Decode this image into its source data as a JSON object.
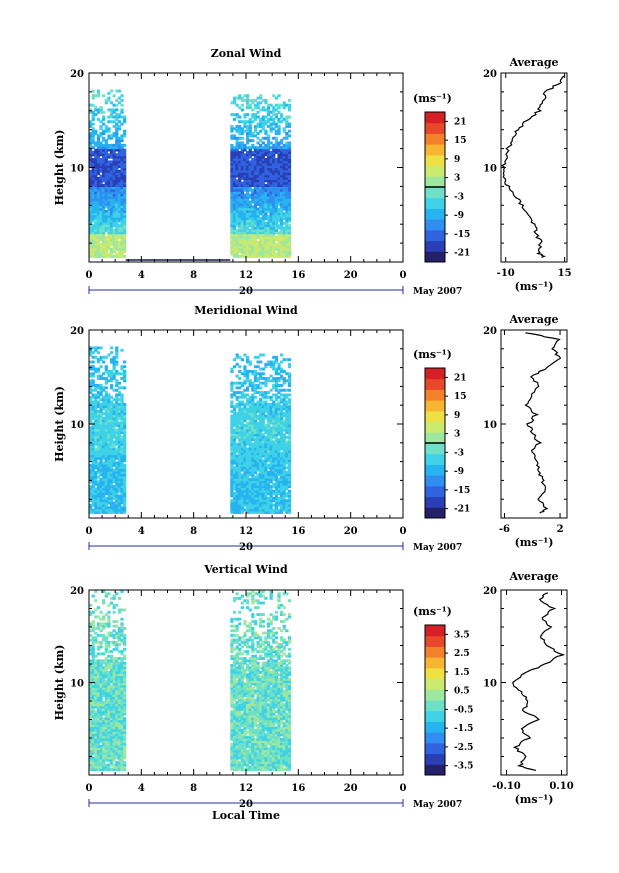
{
  "colors": {
    "colormap": [
      "#25206a",
      "#2a3fb5",
      "#2f63e0",
      "#2f8ef0",
      "#27b3f0",
      "#3fd2e6",
      "#6ee0c8",
      "#9de7a0",
      "#c9ea6e",
      "#efe043",
      "#f7b531",
      "#f3802a",
      "#e8482a",
      "#d42026"
    ],
    "line": "#000000"
  },
  "chart_data": [
    {
      "type": "heatmap",
      "title": "Zonal Wind",
      "ylabel": "Height (km)",
      "xlabel": "",
      "xlim": [
        0,
        24
      ],
      "ylim": [
        0,
        20
      ],
      "x_ticks": [
        "0",
        "4",
        "8",
        "12",
        "16",
        "20",
        "0"
      ],
      "y_ticks": [
        "20",
        "10"
      ],
      "date_axis": {
        "day_label": "20",
        "month_label": "May 2007"
      },
      "colorbar": {
        "unit": "(ms⁻¹)",
        "range": [
          -24,
          24
        ],
        "ticks": [
          "21",
          "15",
          "9",
          "3",
          "-3",
          "-9",
          "-15",
          "-21"
        ],
        "zero_line": true
      },
      "observed_x_ranges": [
        [
          0,
          2.8
        ],
        [
          10.8,
          15.4
        ]
      ],
      "profile": {
        "title": "Average",
        "y_ticks": [
          "20",
          "10"
        ],
        "x_ticks": [
          "-10",
          "15"
        ],
        "xlim": [
          -12,
          16
        ],
        "xlabel": "(ms⁻¹)",
        "heights": [
          0.5,
          1,
          2,
          3,
          4,
          5,
          6,
          7,
          8,
          9,
          10,
          11,
          12,
          13,
          14,
          15,
          16,
          17,
          18,
          19,
          19.7
        ],
        "values": [
          6,
          4,
          5,
          3,
          2,
          0,
          -3,
          -6,
          -9,
          -11,
          -11,
          -10,
          -9,
          -7,
          -5,
          -1,
          4,
          6,
          7,
          13,
          15
        ]
      }
    },
    {
      "type": "heatmap",
      "title": "Meridional Wind",
      "ylabel": "Height (km)",
      "xlabel": "",
      "xlim": [
        0,
        24
      ],
      "ylim": [
        0,
        20
      ],
      "x_ticks": [
        "0",
        "4",
        "8",
        "12",
        "16",
        "20",
        "0"
      ],
      "y_ticks": [
        "20",
        "10"
      ],
      "date_axis": {
        "day_label": "20",
        "month_label": "May 2007"
      },
      "colorbar": {
        "unit": "(ms⁻¹)",
        "range": [
          -24,
          24
        ],
        "ticks": [
          "21",
          "15",
          "9",
          "3",
          "-3",
          "-9",
          "-15",
          "-21"
        ],
        "zero_line": true
      },
      "observed_x_ranges": [
        [
          0,
          2.8
        ],
        [
          10.8,
          15.4
        ]
      ],
      "profile": {
        "title": "Average",
        "y_ticks": [
          "20",
          "10"
        ],
        "x_ticks": [
          "-6",
          "2"
        ],
        "xlim": [
          -6.5,
          3
        ],
        "xlabel": "(ms⁻¹)",
        "heights": [
          0.5,
          1,
          2,
          3,
          4,
          5,
          6,
          7,
          8,
          9,
          10,
          11,
          12,
          13,
          14,
          15,
          16,
          17,
          18,
          19,
          19.7
        ],
        "values": [
          -1,
          0,
          -1,
          0,
          -0.5,
          -1,
          -1.5,
          -2,
          -1,
          -2,
          -2.5,
          -1.5,
          -3,
          -2,
          -1,
          -2,
          0,
          2,
          1,
          2,
          -3
        ]
      }
    },
    {
      "type": "heatmap",
      "title": "Vertical Wind",
      "ylabel": "Height (km)",
      "xlabel": "Local Time",
      "xlim": [
        0,
        24
      ],
      "ylim": [
        0,
        20
      ],
      "x_ticks": [
        "0",
        "4",
        "8",
        "12",
        "16",
        "20",
        "0"
      ],
      "y_ticks": [
        "20",
        "10"
      ],
      "date_axis": {
        "day_label": "20",
        "month_label": "May 2007"
      },
      "colorbar": {
        "unit": "(ms⁻¹)",
        "range": [
          -4,
          4
        ],
        "ticks": [
          "3.5",
          "2.5",
          "1.5",
          "0.5",
          "-0.5",
          "-1.5",
          "-2.5",
          "-3.5"
        ],
        "zero_line": false
      },
      "observed_x_ranges": [
        [
          0,
          2.8
        ],
        [
          10.8,
          15.4
        ]
      ],
      "profile": {
        "title": "Average",
        "y_ticks": [
          "20",
          "10"
        ],
        "x_ticks": [
          "-0.10",
          "0.10"
        ],
        "xlim": [
          -0.12,
          0.12
        ],
        "xlabel": "(ms⁻¹)",
        "heights": [
          0.5,
          1,
          2,
          3,
          4,
          5,
          6,
          7,
          8,
          9,
          10,
          11,
          12,
          13,
          14,
          15,
          16,
          17,
          18,
          19,
          19.7
        ],
        "values": [
          0,
          -0.05,
          -0.03,
          -0.07,
          -0.02,
          -0.05,
          0.02,
          -0.04,
          -0.02,
          -0.05,
          -0.08,
          -0.03,
          0.04,
          0.1,
          0.05,
          0.02,
          0.06,
          0.03,
          0.07,
          0.02,
          0.05
        ]
      }
    }
  ]
}
